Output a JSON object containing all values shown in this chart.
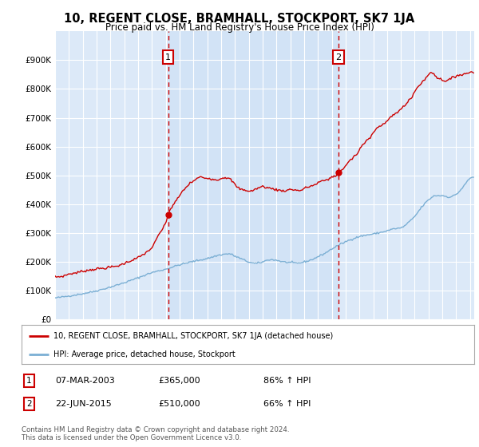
{
  "title": "10, REGENT CLOSE, BRAMHALL, STOCKPORT, SK7 1JA",
  "subtitle": "Price paid vs. HM Land Registry's House Price Index (HPI)",
  "background_color": "#ffffff",
  "plot_bg_color": "#dce9f8",
  "highlight_bg_color": "#cce0f5",
  "ylim": [
    0,
    1000000
  ],
  "yticks": [
    0,
    100000,
    200000,
    300000,
    400000,
    500000,
    600000,
    700000,
    800000,
    900000
  ],
  "ytick_labels": [
    "£0",
    "£100K",
    "£200K",
    "£300K",
    "£400K",
    "£500K",
    "£600K",
    "£700K",
    "£800K",
    "£900K"
  ],
  "red_line_color": "#cc0000",
  "blue_line_color": "#7bafd4",
  "purchase1_date": 2003.17,
  "purchase1_price": 365000,
  "purchase2_date": 2015.47,
  "purchase2_price": 510000,
  "legend_label_red": "10, REGENT CLOSE, BRAMHALL, STOCKPORT, SK7 1JA (detached house)",
  "legend_label_blue": "HPI: Average price, detached house, Stockport",
  "annotation1_date": "07-MAR-2003",
  "annotation1_price": "£365,000",
  "annotation1_hpi": "86% ↑ HPI",
  "annotation2_date": "22-JUN-2015",
  "annotation2_price": "£510,000",
  "annotation2_hpi": "66% ↑ HPI",
  "footer": "Contains HM Land Registry data © Crown copyright and database right 2024.\nThis data is licensed under the Open Government Licence v3.0.",
  "xlim_start": 1995.0,
  "xlim_end": 2025.3,
  "xticks": [
    1995,
    1996,
    1997,
    1998,
    1999,
    2000,
    2001,
    2002,
    2003,
    2004,
    2005,
    2006,
    2007,
    2008,
    2009,
    2010,
    2011,
    2012,
    2013,
    2014,
    2015,
    2016,
    2017,
    2018,
    2019,
    2020,
    2021,
    2022,
    2023,
    2024,
    2025
  ]
}
